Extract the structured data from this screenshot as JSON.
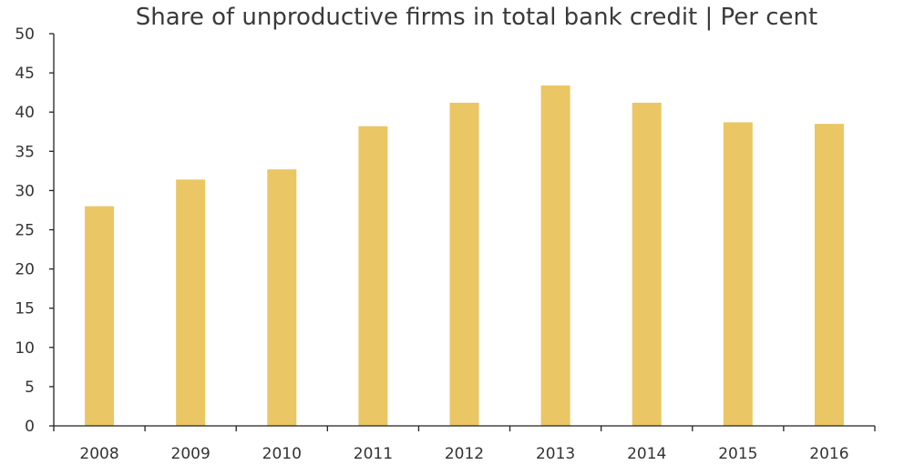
{
  "chart_data": {
    "type": "bar",
    "title": "Share of unproductive firms in total bank credit | Per cent",
    "xlabel": "",
    "ylabel": "",
    "categories": [
      "2008",
      "2009",
      "2010",
      "2011",
      "2012",
      "2013",
      "2014",
      "2015",
      "2016"
    ],
    "values": [
      28.0,
      31.4,
      32.7,
      38.2,
      41.2,
      43.4,
      41.2,
      38.7,
      38.5
    ],
    "ylim": [
      0,
      50
    ],
    "yticks": [
      0,
      5,
      10,
      15,
      20,
      25,
      30,
      35,
      40,
      45,
      50
    ],
    "bar_color": "#ebc665",
    "grid": false,
    "legend": "none"
  }
}
